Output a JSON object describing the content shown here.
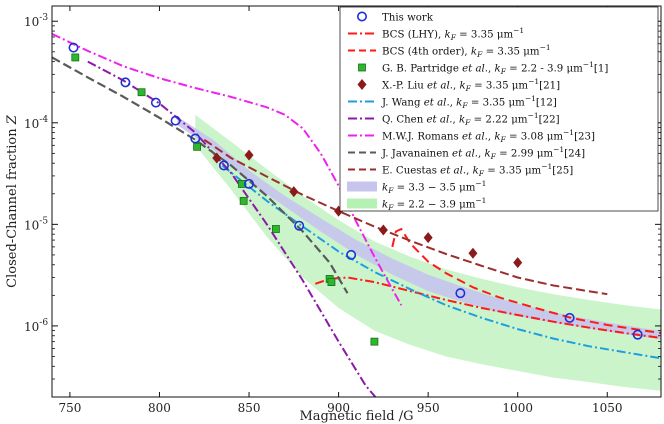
{
  "chart_data": {
    "type": "scatter",
    "title": "",
    "xlabel": "Magnetic field /G",
    "ylabel": "Closed-Channel fraction Z",
    "xlim": [
      740,
      1080
    ],
    "ylim_log10": [
      -6.7,
      -2.85
    ],
    "y_scale": "log",
    "grid": false,
    "legend_position": "top-right",
    "x_ticks": [
      750,
      800,
      850,
      900,
      950,
      1000,
      1050
    ],
    "x_tick_labels": [
      "750",
      "800",
      "850",
      "900",
      "950",
      "1000",
      "1050"
    ],
    "y_ticks": [
      {
        "exp": -6,
        "base": "10",
        "label": "-6"
      },
      {
        "exp": -5,
        "base": "10",
        "label": "-5"
      },
      {
        "exp": -4,
        "base": "10",
        "label": "-4"
      },
      {
        "exp": -3,
        "base": "10",
        "label": "-3"
      }
    ],
    "bands": [
      {
        "name": "k_F = 3.3 - 3.5 μm^-1",
        "color": "#c7c4ee",
        "opacity": 0.9,
        "x": [
          810,
          830,
          850,
          870,
          890,
          910,
          930,
          950,
          970,
          990,
          1010,
          1030,
          1050,
          1070,
          1080
        ],
        "lower": [
          9.5e-05,
          5.5e-05,
          2.6e-05,
          1.5e-05,
          8.5e-06,
          5e-06,
          3.2e-06,
          2.2e-06,
          1.7e-06,
          1.35e-06,
          1.15e-06,
          1e-06,
          8.8e-07,
          7.8e-07,
          7.4e-07
        ],
        "upper": [
          0.000115,
          6.8e-05,
          3.4e-05,
          1.9e-05,
          1.15e-05,
          7e-06,
          4.6e-06,
          3.2e-06,
          2.4e-06,
          1.85e-06,
          1.5e-06,
          1.25e-06,
          1.08e-06,
          9.5e-07,
          9e-07
        ]
      },
      {
        "name": "k_F = 2.2 - 3.9 μm^-1",
        "color": "#b5f0b5",
        "opacity": 0.7,
        "x": [
          820,
          840,
          860,
          880,
          900,
          920,
          940,
          960,
          980,
          1000,
          1020,
          1040,
          1060,
          1080
        ],
        "lower": [
          6e-05,
          2.2e-05,
          7.5e-06,
          3e-06,
          1.5e-06,
          9e-07,
          6.5e-07,
          5e-07,
          4.2e-07,
          3.6e-07,
          3.1e-07,
          2.8e-07,
          2.5e-07,
          2.3e-07
        ],
        "upper": [
          0.00012,
          6.5e-05,
          3.5e-05,
          1.9e-05,
          1.1e-05,
          6.8e-06,
          4.8e-06,
          3.6e-06,
          2.9e-06,
          2.4e-06,
          2.05e-06,
          1.8e-06,
          1.6e-06,
          1.45e-06
        ]
      }
    ],
    "series": [
      {
        "name": "BCS (LHY), k_F = 3.35 μm^-1",
        "kind": "line",
        "color": "#ff1a1a",
        "dash": "9,3,2,3",
        "width": 2,
        "x": [
          887,
          895,
          905,
          920,
          940,
          960,
          980,
          1000,
          1020,
          1040,
          1060,
          1080
        ],
        "y": [
          2.6e-06,
          2.9e-06,
          3e-06,
          2.7e-06,
          2.2e-06,
          1.8e-06,
          1.5e-06,
          1.28e-06,
          1.1e-06,
          9.6e-07,
          8.5e-07,
          7.6e-07
        ]
      },
      {
        "name": "BCS (4th order), k_F = 3.35 μm^-1",
        "kind": "line",
        "color": "#ff1a1a",
        "dash": "9,5",
        "width": 2,
        "x": [
          930,
          932,
          935,
          940,
          950,
          960,
          975,
          990,
          1010,
          1030,
          1050,
          1080
        ],
        "y": [
          6e-06,
          8.5e-06,
          9e-06,
          6.5e-06,
          4.3e-06,
          3.3e-06,
          2.4e-06,
          1.9e-06,
          1.5e-06,
          1.2e-06,
          1.02e-06,
          8.5e-07
        ]
      },
      {
        "name": "G. B. Partridge et al., k_F = 2.2 - 3.9 μm^-1 [1]",
        "kind": "square",
        "color": "#2cb82c",
        "edge": "#1a6e1a",
        "x": [
          753,
          790,
          821,
          846,
          847,
          865,
          895,
          896,
          920
        ],
        "y": [
          0.00044,
          0.0002,
          5.8e-05,
          2.5e-05,
          1.7e-05,
          9e-06,
          2.9e-06,
          2.7e-06,
          7e-07
        ]
      },
      {
        "name": "X.-P. Liu et al., k_F = 3.35 μm^-1 [21]",
        "kind": "diamond",
        "color": "#8b1a1a",
        "x": [
          832,
          850,
          875,
          900,
          925,
          950,
          975,
          1000
        ],
        "y": [
          4.5e-05,
          4.8e-05,
          2.1e-05,
          1.35e-05,
          8.8e-06,
          7.4e-06,
          5.2e-06,
          4.2e-06
        ]
      },
      {
        "name": "J. Wang et al., k_F = 3.35 μm^-1 [12]",
        "kind": "line",
        "color": "#1e9ee0",
        "dash": "9,3,2,3",
        "width": 2,
        "x": [
          835,
          860,
          880,
          900,
          920,
          940,
          960,
          980,
          1000,
          1020,
          1040,
          1060,
          1080
        ],
        "y": [
          3.8e-05,
          1.7e-05,
          9.5e-06,
          5.4e-06,
          3.4e-06,
          2.3e-06,
          1.6e-06,
          1.2e-06,
          9.3e-07,
          7.5e-07,
          6.3e-07,
          5.5e-07,
          4.8e-07
        ]
      },
      {
        "name": "Q. Chen et al., k_F = 2.22 μm^-1 [22]",
        "kind": "line",
        "color": "#8c1aa8",
        "dash": "9,3,2,3",
        "width": 2,
        "x": [
          760,
          780,
          800,
          820,
          840,
          860,
          880,
          900,
          915,
          921
        ],
        "y": [
          0.0004,
          0.00026,
          0.000155,
          8e-05,
          3.2e-05,
          1e-05,
          2.8e-06,
          7e-07,
          2.6e-07,
          1.95e-07
        ]
      },
      {
        "name": "M.W.J. Romans et al., k_F = 3.08 μm^-1 [23]",
        "kind": "line",
        "color": "#ee22ee",
        "dash": "9,3,2,3",
        "width": 2,
        "x": [
          740,
          760,
          780,
          800,
          820,
          840,
          860,
          870,
          880,
          890,
          900,
          910,
          920,
          930,
          935
        ],
        "y": [
          0.00075,
          0.00051,
          0.00036,
          0.000275,
          0.00022,
          0.00018,
          0.000142,
          0.00012,
          8.8e-05,
          5e-05,
          2.4e-05,
          1.05e-05,
          4.8e-06,
          2.3e-06,
          1.6e-06
        ]
      },
      {
        "name": "J. Javanainen et al., k_F = 2.99 μm^-1 [24]",
        "kind": "line",
        "color": "#5a5a5a",
        "dash": "9,4",
        "width": 2.2,
        "x": [
          740,
          760,
          780,
          800,
          820,
          840,
          860,
          880,
          895,
          905
        ],
        "y": [
          0.00044,
          0.00028,
          0.00018,
          0.000112,
          6.8e-05,
          3.8e-05,
          1.9e-05,
          8.5e-06,
          4.2e-06,
          2.1e-06
        ]
      },
      {
        "name": "E. Cuestas et al., k_F = 3.35 μm^-1 [25]",
        "kind": "line",
        "color": "#9c2e2e",
        "dash": "9,4",
        "width": 2,
        "x": [
          825,
          840,
          860,
          880,
          900,
          920,
          940,
          960,
          980,
          1000,
          1020,
          1050
        ],
        "y": [
          6.8e-05,
          4.5e-05,
          2.95e-05,
          1.95e-05,
          1.35e-05,
          9.5e-06,
          6.9e-06,
          5.1e-06,
          3.9e-06,
          3e-06,
          2.5e-06,
          2.05e-06
        ]
      },
      {
        "name": "This work",
        "kind": "circle",
        "color": "#1f2fd8",
        "x": [
          752,
          781,
          798,
          809,
          820,
          836,
          850,
          878,
          907,
          968,
          1029,
          1067
        ],
        "y": [
          0.00055,
          0.00025,
          0.000158,
          0.000105,
          7e-05,
          3.8e-05,
          2.5e-05,
          9.7e-06,
          5e-06,
          2.1e-06,
          1.2e-06,
          8.2e-07
        ]
      }
    ],
    "legend": [
      {
        "kind": "circle",
        "color": "#1f2fd8",
        "pre": "This work",
        "kf": "",
        "post": ""
      },
      {
        "kind": "line",
        "color": "#ff1a1a",
        "dash": "9,3,2,3",
        "pre": "BCS (LHY), ",
        "kf": "3.35",
        "post": ""
      },
      {
        "kind": "line",
        "color": "#ff1a1a",
        "dash": "7,4",
        "pre": "BCS (4th order), ",
        "kf": "3.35",
        "post": ""
      },
      {
        "kind": "square",
        "color": "#2cb82c",
        "pre": "G. B. Partridge ",
        "etal": true,
        "kf": "2.2 - 3.9",
        "post": "[1]"
      },
      {
        "kind": "diamond",
        "color": "#8b1a1a",
        "pre": "X.-P. Liu ",
        "etal": true,
        "kf": "3.35",
        "post": "[21]"
      },
      {
        "kind": "line",
        "color": "#1e9ee0",
        "dash": "9,3,2,3",
        "pre": "J. Wang ",
        "etal": true,
        "kf": "3.35",
        "post": "[12]"
      },
      {
        "kind": "line",
        "color": "#8c1aa8",
        "dash": "9,3,2,3",
        "pre": "Q. Chen ",
        "etal": true,
        "kf": "2.22",
        "post": "[22]"
      },
      {
        "kind": "line",
        "color": "#ee22ee",
        "dash": "9,3,2,3",
        "pre": "M.W.J. Romans ",
        "etal": true,
        "kf": "3.08",
        "post": "[23]"
      },
      {
        "kind": "line",
        "color": "#5a5a5a",
        "dash": "7,4",
        "pre": "J. Javanainen ",
        "etal": true,
        "kf": "2.99",
        "post": "[24]"
      },
      {
        "kind": "line",
        "color": "#9c2e2e",
        "dash": "7,4",
        "pre": "E. Cuestas ",
        "etal": true,
        "kf": "3.35",
        "post": "[25]"
      },
      {
        "kind": "patch",
        "color": "#c7c4ee",
        "pre": "",
        "kfRange": "3.3 − 3.5",
        "post": ""
      },
      {
        "kind": "patch",
        "color": "#b5f0b5",
        "pre": "",
        "kfRange": "2.2 − 3.9",
        "post": ""
      }
    ],
    "legend_tokens": {
      "kf_symbol": "k",
      "kf_sub": "F",
      "equals": " = ",
      "unit": " μm",
      "unit_exp": "−1",
      "etal": "et al.",
      "etal_sep": ", "
    }
  }
}
